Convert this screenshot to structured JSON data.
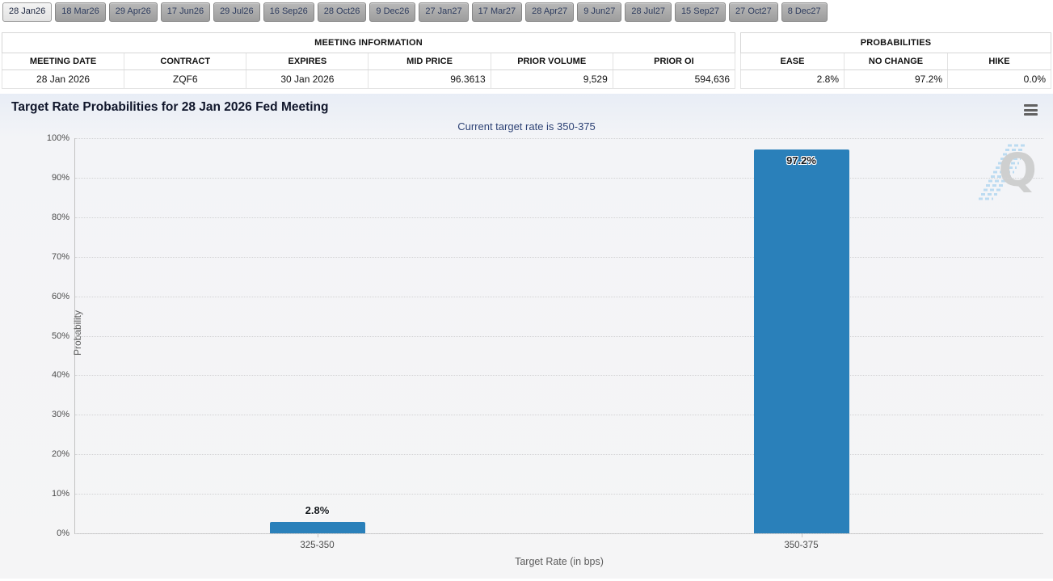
{
  "tabs": [
    "28 Jan26",
    "18 Mar26",
    "29 Apr26",
    "17 Jun26",
    "29 Jul26",
    "16 Sep26",
    "28 Oct26",
    "9 Dec26",
    "27 Jan27",
    "17 Mar27",
    "28 Apr27",
    "9 Jun27",
    "28 Jul27",
    "15 Sep27",
    "27 Oct27",
    "8 Dec27"
  ],
  "active_tab": "28 Jan26",
  "meeting_info": {
    "title": "MEETING INFORMATION",
    "columns": [
      "MEETING DATE",
      "CONTRACT",
      "EXPIRES",
      "MID PRICE",
      "PRIOR VOLUME",
      "PRIOR OI"
    ],
    "values": [
      "28 Jan 2026",
      "ZQF6",
      "30 Jan 2026",
      "96.3613",
      "9,529",
      "594,636"
    ]
  },
  "probabilities": {
    "title": "PROBABILITIES",
    "columns": [
      "EASE",
      "NO CHANGE",
      "HIKE"
    ],
    "values": [
      "2.8%",
      "97.2%",
      "0.0%"
    ]
  },
  "chart_data": {
    "type": "bar",
    "title": "Target Rate Probabilities for 28 Jan 2026 Fed Meeting",
    "subtitle": "Current target rate is 350-375",
    "xlabel": "Target Rate (in bps)",
    "ylabel": "Probability",
    "categories": [
      "325-350",
      "350-375"
    ],
    "values": [
      2.8,
      97.2
    ],
    "value_labels": [
      "2.8%",
      "97.2%"
    ],
    "ylim": [
      0,
      100
    ],
    "ytick_labels": [
      "0%",
      "10%",
      "20%",
      "30%",
      "40%",
      "50%",
      "60%",
      "70%",
      "80%",
      "90%",
      "100%"
    ],
    "grid": "dotted-horizontal",
    "legend": "none",
    "bar_color": "#2a80ba"
  },
  "icons": {
    "chart_menu": "hamburger-menu-icon",
    "watermark": "quikstrike-q-watermark-icon"
  }
}
